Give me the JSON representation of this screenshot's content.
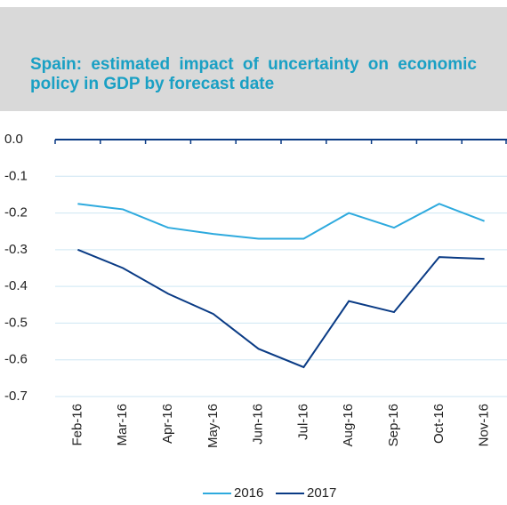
{
  "chart_data": {
    "type": "line",
    "title": "Spain: estimated impact of uncertainty on economic policy in GDP by forecast date",
    "categories": [
      "Feb-16",
      "Mar-16",
      "Apr-16",
      "May-16",
      "Jun-16",
      "Jul-16",
      "Aug-16",
      "Sep-16",
      "Oct-16",
      "Nov-16"
    ],
    "series": [
      {
        "name": "2016",
        "color": "#2eaade",
        "values": [
          -0.175,
          -0.19,
          -0.24,
          -0.257,
          -0.27,
          -0.27,
          -0.2,
          -0.24,
          -0.175,
          -0.222
        ]
      },
      {
        "name": "2017",
        "color": "#0a3b85",
        "values": [
          -0.3,
          -0.35,
          -0.42,
          -0.475,
          -0.57,
          -0.62,
          -0.44,
          -0.47,
          -0.32,
          -0.325
        ]
      }
    ],
    "ylim": [
      -0.7,
      0
    ],
    "yticks": [
      {
        "value": 0,
        "label": "0.0"
      },
      -0.1,
      -0.2,
      -0.3,
      -0.4,
      -0.5,
      -0.6,
      -0.7
    ],
    "grid": true,
    "legend": "bottom"
  }
}
